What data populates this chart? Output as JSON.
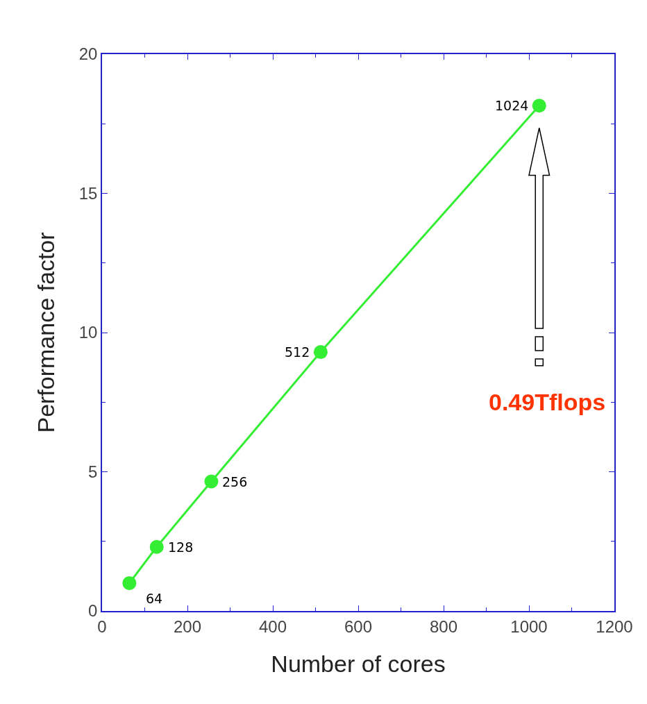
{
  "chart_data": {
    "type": "line",
    "xlabel": "Number of cores",
    "ylabel": "Performance factor",
    "x": [
      64,
      128,
      256,
      512,
      1024
    ],
    "series": [
      {
        "color": "#33ee33",
        "values": [
          1.0,
          2.3,
          4.65,
          9.3,
          18.15
        ]
      }
    ],
    "xlim": [
      0,
      1200
    ],
    "xticks": [
      0,
      200,
      400,
      600,
      800,
      1000,
      1200
    ],
    "ylim": [
      0,
      20
    ],
    "yticks": [
      0,
      5,
      10,
      15,
      20
    ],
    "marker": "circle",
    "line_style": "solid",
    "annotations": [
      {
        "text": "64",
        "x": 64,
        "y": 1.0
      },
      {
        "text": "128",
        "x": 128,
        "y": 2.3
      },
      {
        "text": "256",
        "x": 256,
        "y": 4.65
      },
      {
        "text": "512",
        "x": 512,
        "y": 9.3
      },
      {
        "text": "1024",
        "x": 1024,
        "y": 18.15
      },
      "0.49Tflops"
    ]
  }
}
